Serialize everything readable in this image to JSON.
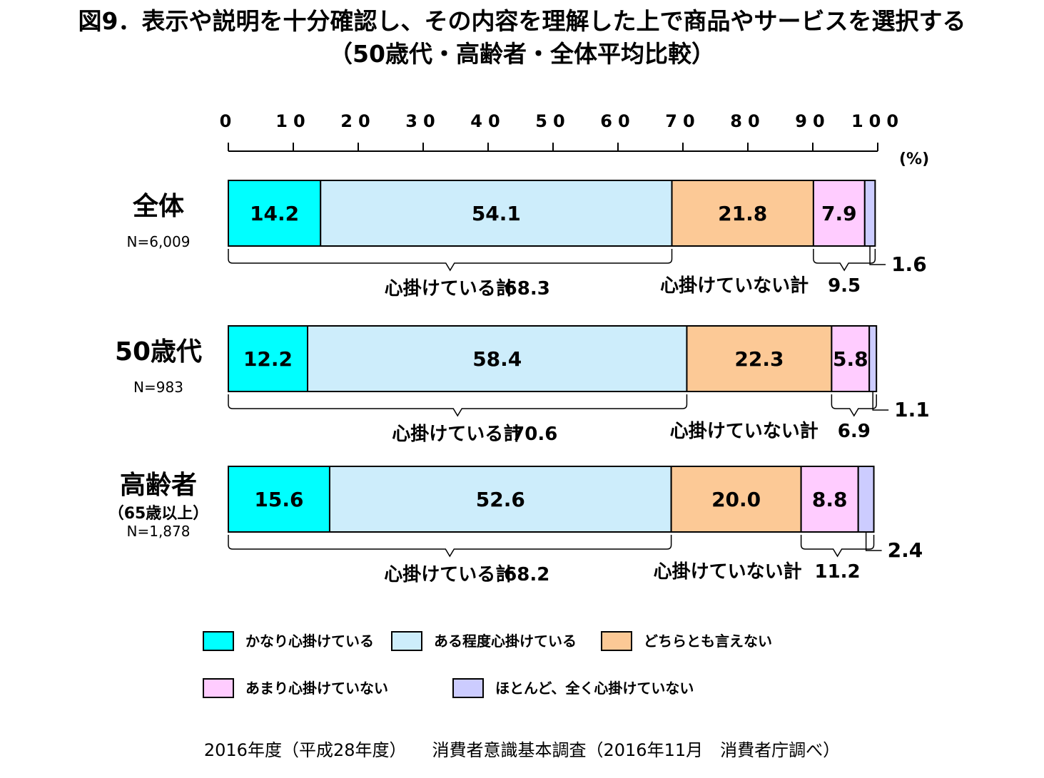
{
  "title": {
    "line1": "図9．表示や説明を十分確認し、その内容を理解した上で商品やサービスを選択する",
    "line2": "（50歳代・高齢者・全体平均比較）"
  },
  "chart_data": {
    "type": "bar",
    "orientation": "horizontal",
    "stacked": true,
    "unit_label": "(%)",
    "xlim": [
      0,
      100
    ],
    "x_ticks": [
      "0",
      "10",
      "20",
      "30",
      "40",
      "50",
      "60",
      "70",
      "80",
      "90",
      "100"
    ],
    "series": [
      {
        "name": "かなり心掛けている",
        "color": "#00ffff"
      },
      {
        "name": "ある程度心掛けている",
        "color": "#cdedfb"
      },
      {
        "name": "どちらとも言えない",
        "color": "#fcc996"
      },
      {
        "name": "あまり心掛けていない",
        "color": "#ffccff"
      },
      {
        "name": "ほとんど、全く心掛けていない",
        "color": "#ccccff"
      }
    ],
    "categories": [
      {
        "name": "全体",
        "sublabel": "",
        "n": "N=6,009",
        "values": [
          14.2,
          54.1,
          21.8,
          7.9,
          1.6
        ],
        "value_labels": [
          "14.2",
          "54.1",
          "21.8",
          "7.9",
          ""
        ],
        "small_value_label": "1.6",
        "positive_total_label": "心掛けている計",
        "positive_total": "68.3",
        "negative_total_label": "心掛けていない計",
        "negative_total": "9.5"
      },
      {
        "name": "50歳代",
        "sublabel": "",
        "n": "N=983",
        "values": [
          12.2,
          58.4,
          22.3,
          5.8,
          1.1
        ],
        "value_labels": [
          "12.2",
          "58.4",
          "22.3",
          "5.8",
          ""
        ],
        "small_value_label": "1.1",
        "positive_total_label": "心掛けている計",
        "positive_total": "70.6",
        "negative_total_label": "心掛けていない計",
        "negative_total": "6.9"
      },
      {
        "name": "高齢者",
        "sublabel": "（65歳以上）",
        "n": "N=1,878",
        "values": [
          15.6,
          52.6,
          20.0,
          8.8,
          2.4
        ],
        "value_labels": [
          "15.6",
          "52.6",
          "20.0",
          "8.8",
          ""
        ],
        "small_value_label": "2.4",
        "positive_total_label": "心掛けている計",
        "positive_total": "68.2",
        "negative_total_label": "心掛けていない計",
        "negative_total": "11.2"
      }
    ]
  },
  "footer": {
    "text": "2016年度（平成28年度）　　消費者意識基本調査（2016年11月　消費者庁調べ）"
  }
}
